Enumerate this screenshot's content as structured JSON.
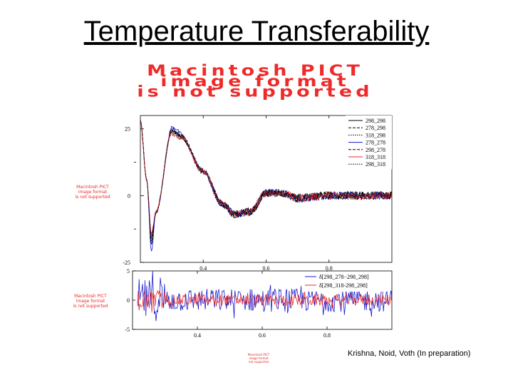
{
  "slide": {
    "title": "Temperature Transferability",
    "caption": "Krishna, Noid, Voth (In preparation)"
  },
  "placeholders": {
    "large": [
      "Macintosh PICT",
      "image format",
      "is not supported"
    ],
    "left_top": [
      "Macintosh PICT",
      "image format",
      "is not supported"
    ],
    "left_bottom": [
      "Macintosh PICT",
      "image format",
      "is not supported"
    ],
    "footer": [
      "Macintosh PICT",
      "image format",
      "not supported"
    ]
  },
  "colors": {
    "red": "#ee2a2a",
    "blue": "#1a1acc",
    "black": "#000000"
  },
  "chart_data": [
    {
      "type": "line",
      "title": "",
      "xlabel": "",
      "ylabel": "",
      "xlim": [
        0.2,
        1.0
      ],
      "ylim": [
        -25,
        30
      ],
      "x_ticks": [
        "0.4",
        "0.6",
        "0.8"
      ],
      "y_ticks": [
        "25",
        "0",
        "-25"
      ],
      "legend_position": "top-right",
      "series": [
        {
          "name": "298_298",
          "color": "#000000",
          "style": "solid",
          "depth": 5.0
        },
        {
          "name": "278_298",
          "color": "#000000",
          "style": "dashed",
          "depth": 4.0
        },
        {
          "name": "318_298",
          "color": "#000000",
          "style": "dotted",
          "depth": 4.0
        },
        {
          "name": "278_278",
          "color": "#1a1acc",
          "style": "solid",
          "depth": 8.0
        },
        {
          "name": "298_278",
          "color": "#000000",
          "style": "dashed",
          "depth": 3.0
        },
        {
          "name": "318_318",
          "color": "#ee2a2a",
          "style": "solid",
          "depth": 1.0
        },
        {
          "name": "298_318",
          "color": "#000000",
          "style": "dotted",
          "depth": 2.0
        }
      ],
      "key_points": {
        "x": [
          0.2,
          0.22,
          0.235,
          0.25,
          0.3,
          0.33,
          0.4,
          0.46,
          0.5,
          0.55,
          0.6,
          0.65,
          0.7,
          0.8,
          0.9,
          1.0
        ],
        "y": [
          28,
          6,
          -13,
          -6,
          24,
          22,
          9,
          -3,
          -7,
          -6,
          1,
          1,
          -1,
          0,
          0,
          0
        ]
      }
    },
    {
      "type": "line",
      "title": "",
      "xlabel": "",
      "ylabel": "",
      "xlim": [
        0.2,
        1.0
      ],
      "ylim": [
        -5,
        5
      ],
      "x_ticks": [
        "0.4",
        "0.6",
        "0.8"
      ],
      "y_ticks": [
        "5",
        "0",
        "-5"
      ],
      "legend_position": "top-right",
      "series": [
        {
          "name": "δ[298_278−298_298]",
          "color": "#1a1acc",
          "style": "solid",
          "noise_amplitude": 2.0
        },
        {
          "name": "δ[298_318-298_298]",
          "color": "#ee2a2a",
          "style": "solid",
          "noise_amplitude": 1.0
        }
      ]
    }
  ]
}
